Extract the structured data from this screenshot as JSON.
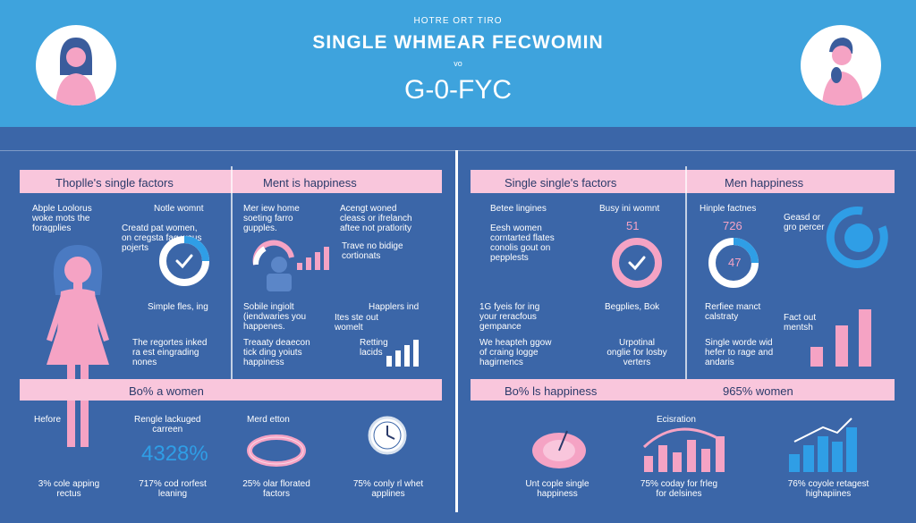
{
  "header": {
    "kicker": "HOTRE ORT TIRO",
    "title": "SINGLE WHMEAR FECWOMIN",
    "sub": "vo",
    "code": "G-0-FYC"
  },
  "left": {
    "band1_a": "Thoplle's single factors",
    "band1_b": "Ment is happiness",
    "band2_a": "Bo% a women",
    "t1": "Abple Loolorus\nwoke mots the\nforagplies",
    "t2": "Notle womnt",
    "t3": "Creatd pat women,\non cregsta fag wous\npojerts",
    "t4": "Mer iew home\nsoeting farro\ngupples.",
    "t5": "Acengt woned\ncleass or ifrelanch\naftee not pratlority",
    "t6": "Trave no bidige\ncortionats",
    "t7": "Simple fles, ing",
    "t8": "Sobile ingiolt\n(iendwaries you\nhappenes.",
    "t9": "Happlers ind",
    "t10": "Ites ste out\nwomelt",
    "t11": "The regortes inked\nra est eingrading\nnones",
    "t12": "Treaaty deaecon\ntick ding yoiuts\nhappiness",
    "t13": "Retting\nlacids",
    "b1": "Hefore",
    "b2": "Rengle lackuged\ncarreen",
    "b3": "4328%",
    "b4": "Merd etton",
    "b5": "3% cole apping\nrectus",
    "b6": "717% cod rorfest\nleaning",
    "b7": "25% olar florated\nfactors",
    "b8": "75% conly rl whet\napplines"
  },
  "right": {
    "band1_a": "Single single's factors",
    "band1_b": "Men happiness",
    "band2_a": "Bo% ls happiness",
    "band2_b": "965% women",
    "t1": "Betee lingines",
    "t2": "Busy ini womnt",
    "t3": "51",
    "t4": "Eesh women\ncorntarted flates",
    "t5": "conolis gout on\npepplests",
    "t6": "Hinple factnes",
    "t7": "726",
    "t8": "47",
    "t9": "Geasd or\ngro percer",
    "t10": "1G fyeis for ing\nyour reracfous\ngempance",
    "t11": "Begplies, Bok",
    "t12": "Rerfiee manct\ncalstraty",
    "t13": "Fact out\nmentsh",
    "t14": "We heapteh ggow\nof craing logge\nhagirnencs",
    "t15": "Urpotinal\nonglie for losby\nverters",
    "t16": "Single worde wid\nhefer to rage and\nandaris",
    "b1": "Ecisration",
    "b2": "Unt cople single\nhappiness",
    "b3": "75% coday for frleg\nfor delsines",
    "b4": "76% coyole retagest\nhighapiines"
  },
  "colors": {
    "pink": "#f5a3c4",
    "band": "#f9c6dc",
    "blue": "#2f9ee6",
    "bg": "#3b66a8",
    "header": "#3ea3dd"
  }
}
